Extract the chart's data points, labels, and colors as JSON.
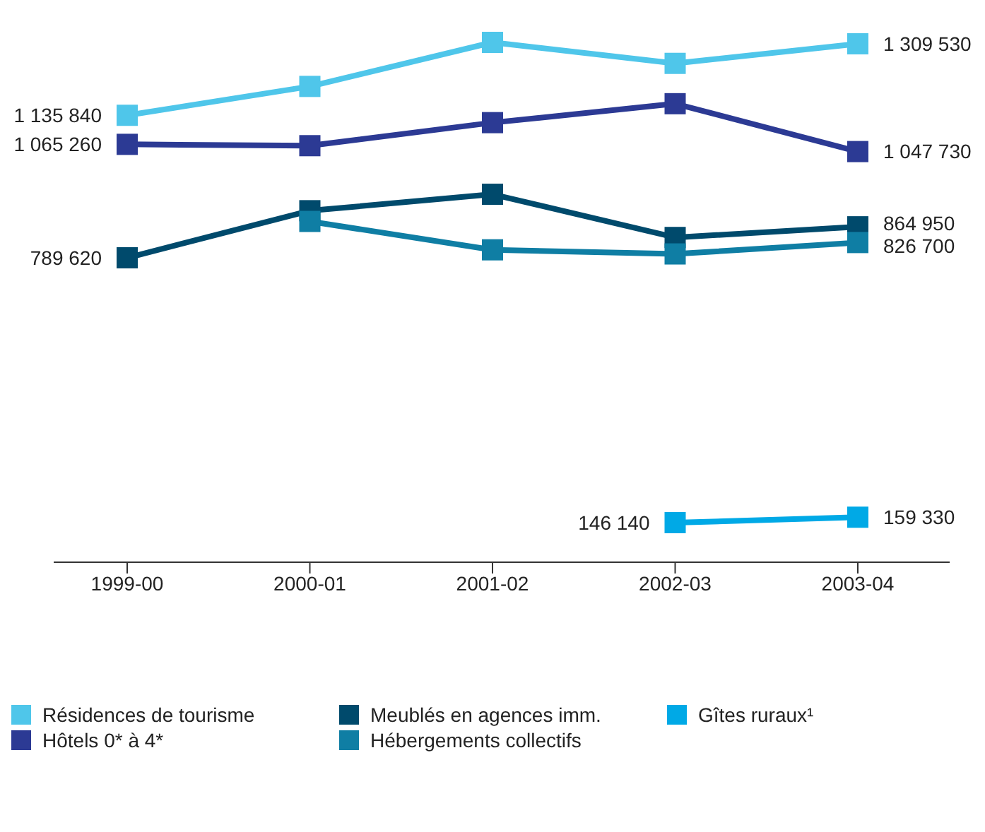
{
  "chart_data": {
    "type": "line",
    "categories": [
      "1999-00",
      "2000-01",
      "2001-02",
      "2002-03",
      "2003-04"
    ],
    "marker": "square",
    "grid": false,
    "legend": "bottom",
    "tick_labels": "x",
    "series": [
      {
        "name": "Résidences de tourisme",
        "color": "#4fc6ea",
        "values": [
          1135840,
          1206000,
          1313000,
          1262000,
          1309530
        ],
        "value_labels": [
          "1 135 840",
          null,
          null,
          null,
          "1 309 530"
        ]
      },
      {
        "name": "Hôtels 0* à 4*",
        "color": "#2c3a94",
        "values": [
          1065260,
          1062000,
          1118000,
          1164000,
          1047730
        ],
        "value_labels": [
          "1 065 260",
          null,
          null,
          null,
          "1 047 730"
        ]
      },
      {
        "name": "Meublés en agences imm.",
        "color": "#004a6c",
        "values": [
          789620,
          904000,
          944000,
          839000,
          864950
        ],
        "value_labels": [
          "789 620",
          null,
          null,
          null,
          "864 950"
        ]
      },
      {
        "name": "Hébergements collectifs",
        "color": "#0f7ea4",
        "values": [
          null,
          878000,
          809000,
          799000,
          826700
        ],
        "value_labels": [
          null,
          null,
          null,
          null,
          "826 700"
        ]
      },
      {
        "name": "Gîtes ruraux¹",
        "color": "#00a9e6",
        "values": [
          null,
          null,
          null,
          146140,
          159330
        ],
        "value_labels": [
          null,
          null,
          null,
          "146 140",
          "159 330"
        ]
      }
    ]
  }
}
